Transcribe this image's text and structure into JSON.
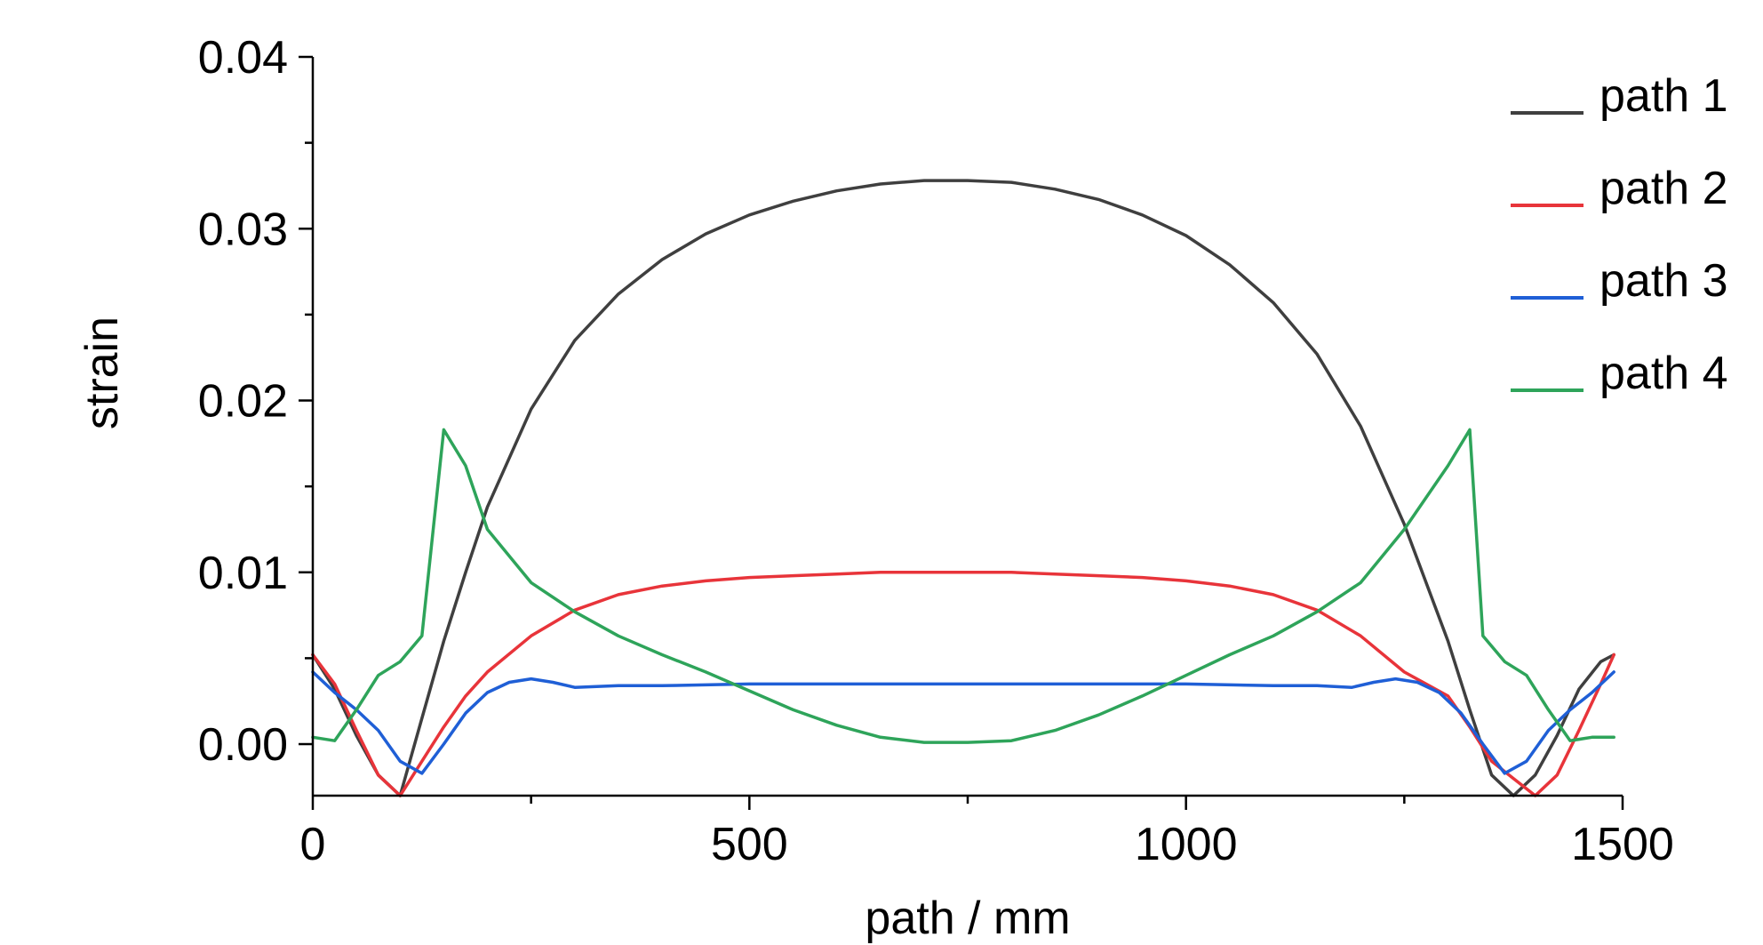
{
  "chart_data": {
    "type": "line",
    "title": "",
    "xlabel": "path / mm",
    "ylabel": "strain",
    "xlim": [
      0,
      1500
    ],
    "ylim": [
      -0.003,
      0.04
    ],
    "xticks": [
      0,
      500,
      1000,
      1500
    ],
    "xtick_labels": [
      "0",
      "500",
      "1000",
      "1500"
    ],
    "yticks": [
      0.0,
      0.01,
      0.02,
      0.03,
      0.04
    ],
    "ytick_labels": [
      "0.00",
      "0.01",
      "0.02",
      "0.03",
      "0.04"
    ],
    "grid": false,
    "legend_position": "top-right",
    "series": [
      {
        "name": "path 1",
        "color": "#3f3f3f",
        "x": [
          0,
          25,
          50,
          75,
          100,
          125,
          150,
          175,
          200,
          250,
          300,
          350,
          400,
          450,
          500,
          550,
          600,
          650,
          700,
          750,
          800,
          850,
          900,
          950,
          1000,
          1050,
          1100,
          1150,
          1200,
          1250,
          1300,
          1325,
          1350,
          1375,
          1400,
          1425,
          1450,
          1475,
          1490
        ],
        "y": [
          0.0052,
          0.0032,
          0.0005,
          -0.0018,
          -0.003,
          0.0015,
          0.006,
          0.01,
          0.0138,
          0.0195,
          0.0235,
          0.0262,
          0.0282,
          0.0297,
          0.0308,
          0.0316,
          0.0322,
          0.0326,
          0.0328,
          0.0328,
          0.0327,
          0.0323,
          0.0317,
          0.0308,
          0.0296,
          0.0279,
          0.0257,
          0.0227,
          0.0185,
          0.0128,
          0.006,
          0.002,
          -0.0018,
          -0.003,
          -0.0018,
          0.0005,
          0.0032,
          0.0048,
          0.0052
        ]
      },
      {
        "name": "path 2",
        "color": "#e8343a",
        "x": [
          0,
          25,
          50,
          75,
          100,
          125,
          150,
          175,
          200,
          250,
          300,
          350,
          400,
          450,
          500,
          550,
          600,
          650,
          700,
          750,
          800,
          850,
          900,
          950,
          1000,
          1050,
          1100,
          1150,
          1200,
          1250,
          1300,
          1325,
          1350,
          1375,
          1400,
          1425,
          1450,
          1475,
          1490
        ],
        "y": [
          0.0052,
          0.0035,
          0.0008,
          -0.0018,
          -0.003,
          -0.001,
          0.001,
          0.0028,
          0.0042,
          0.0063,
          0.0078,
          0.0087,
          0.0092,
          0.0095,
          0.0097,
          0.0098,
          0.0099,
          0.01,
          0.01,
          0.01,
          0.01,
          0.0099,
          0.0098,
          0.0097,
          0.0095,
          0.0092,
          0.0087,
          0.0078,
          0.0063,
          0.0042,
          0.0028,
          0.001,
          -0.001,
          -0.002,
          -0.003,
          -0.0018,
          0.0008,
          0.0035,
          0.0052
        ]
      },
      {
        "name": "path 3",
        "color": "#1f5fd6",
        "x": [
          0,
          25,
          50,
          75,
          100,
          125,
          150,
          175,
          200,
          225,
          250,
          275,
          300,
          350,
          400,
          500,
          600,
          700,
          800,
          900,
          1000,
          1100,
          1150,
          1190,
          1215,
          1240,
          1265,
          1290,
          1315,
          1340,
          1365,
          1390,
          1415,
          1440,
          1465,
          1490
        ],
        "y": [
          0.0042,
          0.003,
          0.002,
          0.0008,
          -0.001,
          -0.0017,
          0.0,
          0.0018,
          0.003,
          0.0036,
          0.0038,
          0.0036,
          0.0033,
          0.0034,
          0.0034,
          0.0035,
          0.0035,
          0.0035,
          0.0035,
          0.0035,
          0.0035,
          0.0034,
          0.0034,
          0.0033,
          0.0036,
          0.0038,
          0.0036,
          0.003,
          0.0018,
          0.0,
          -0.0017,
          -0.001,
          0.0008,
          0.002,
          0.003,
          0.0042
        ]
      },
      {
        "name": "path 4",
        "color": "#2ea45a",
        "x": [
          0,
          25,
          50,
          75,
          100,
          125,
          150,
          175,
          200,
          250,
          300,
          350,
          400,
          450,
          500,
          550,
          600,
          650,
          700,
          750,
          800,
          850,
          900,
          950,
          1000,
          1050,
          1100,
          1150,
          1200,
          1250,
          1300,
          1325,
          1340,
          1365,
          1390,
          1415,
          1440,
          1465,
          1490
        ],
        "y": [
          0.0004,
          0.0002,
          0.002,
          0.004,
          0.0048,
          0.0063,
          0.0183,
          0.0162,
          0.0125,
          0.0094,
          0.0077,
          0.0063,
          0.0052,
          0.0042,
          0.0031,
          0.002,
          0.0011,
          0.0004,
          0.0001,
          0.0001,
          0.0002,
          0.0008,
          0.0017,
          0.0028,
          0.004,
          0.0052,
          0.0063,
          0.0077,
          0.0094,
          0.0125,
          0.0162,
          0.0183,
          0.0063,
          0.0048,
          0.004,
          0.002,
          0.0002,
          0.0004,
          0.0004
        ]
      }
    ]
  }
}
